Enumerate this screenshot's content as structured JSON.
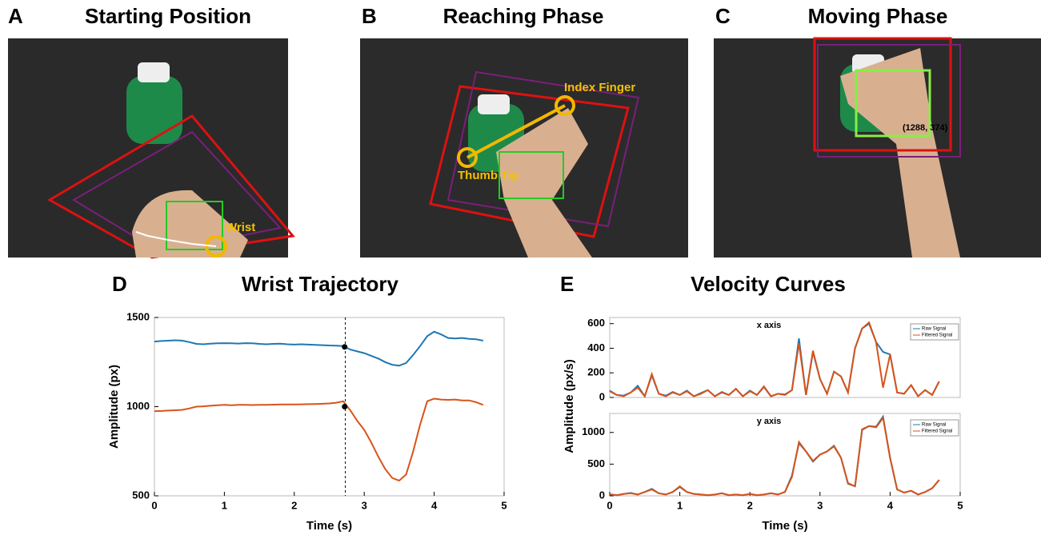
{
  "panels": [
    {
      "label": "A",
      "title": "Starting Position",
      "annotations": [
        "Wrist"
      ]
    },
    {
      "label": "B",
      "title": "Reaching Phase",
      "annotations": [
        "Index Finger",
        "Thumb Tip"
      ]
    },
    {
      "label": "C",
      "title": "Moving Phase",
      "annotations": [
        "(1288, 374)"
      ]
    }
  ],
  "chart_data": [
    {
      "type": "line",
      "label": "D",
      "title": "Wrist Trajectory",
      "xlabel": "Time (s)",
      "ylabel": "Amplitude (px)",
      "x": [
        0,
        0.1,
        0.2,
        0.3,
        0.4,
        0.5,
        0.6,
        0.7,
        0.8,
        0.9,
        1.0,
        1.1,
        1.2,
        1.3,
        1.4,
        1.5,
        1.6,
        1.7,
        1.8,
        1.9,
        2.0,
        2.1,
        2.2,
        2.3,
        2.4,
        2.5,
        2.6,
        2.7,
        2.8,
        2.9,
        3.0,
        3.1,
        3.2,
        3.3,
        3.4,
        3.5,
        3.6,
        3.7,
        3.8,
        3.9,
        4.0,
        4.1,
        4.2,
        4.3,
        4.4,
        4.5,
        4.6,
        4.7
      ],
      "series": [
        {
          "color": "#1f77b4",
          "values": [
            1365,
            1368,
            1370,
            1372,
            1370,
            1362,
            1352,
            1350,
            1353,
            1355,
            1356,
            1355,
            1354,
            1356,
            1355,
            1352,
            1350,
            1352,
            1353,
            1350,
            1348,
            1350,
            1348,
            1346,
            1345,
            1343,
            1342,
            1340,
            1320,
            1310,
            1300,
            1285,
            1270,
            1250,
            1235,
            1230,
            1245,
            1290,
            1340,
            1395,
            1420,
            1405,
            1385,
            1382,
            1385,
            1380,
            1378,
            1370
          ]
        },
        {
          "color": "#d95319",
          "values": [
            975,
            976,
            978,
            980,
            982,
            990,
            1000,
            1002,
            1005,
            1008,
            1010,
            1008,
            1010,
            1010,
            1009,
            1010,
            1010,
            1011,
            1012,
            1012,
            1012,
            1013,
            1014,
            1015,
            1016,
            1018,
            1022,
            1030,
            980,
            920,
            870,
            800,
            720,
            650,
            600,
            585,
            620,
            750,
            900,
            1030,
            1045,
            1040,
            1038,
            1040,
            1035,
            1035,
            1025,
            1010
          ]
        }
      ],
      "markers": {
        "x": [
          2.72,
          2.72
        ],
        "y": [
          1335,
          1000
        ]
      },
      "vline": 2.73,
      "xlim": [
        0,
        5
      ],
      "xticks": [
        0,
        1,
        2,
        3,
        4,
        5
      ],
      "ylim": [
        500,
        1500
      ],
      "yticks": [
        500,
        1000,
        1500
      ]
    },
    {
      "type": "line",
      "label": "E",
      "title": "Velocity Curves",
      "ylabel": "Amplitude (px/s)",
      "annotation": "x axis",
      "x": [
        0,
        0.1,
        0.2,
        0.3,
        0.4,
        0.5,
        0.6,
        0.7,
        0.8,
        0.9,
        1.0,
        1.1,
        1.2,
        1.3,
        1.4,
        1.5,
        1.6,
        1.7,
        1.8,
        1.9,
        2.0,
        2.1,
        2.2,
        2.3,
        2.4,
        2.5,
        2.6,
        2.7,
        2.8,
        2.9,
        3.0,
        3.1,
        3.2,
        3.3,
        3.4,
        3.5,
        3.6,
        3.7,
        3.8,
        3.9,
        4.0,
        4.1,
        4.2,
        4.3,
        4.4,
        4.5,
        4.6,
        4.7
      ],
      "series": [
        {
          "name": "Raw Signal",
          "color": "#1f77b4",
          "values": [
            55,
            20,
            15,
            40,
            95,
            10,
            180,
            30,
            15,
            45,
            20,
            55,
            10,
            35,
            60,
            10,
            45,
            20,
            70,
            10,
            55,
            20,
            85,
            10,
            30,
            25,
            60,
            480,
            20,
            370,
            150,
            30,
            210,
            170,
            40,
            400,
            560,
            600,
            450,
            370,
            350,
            40,
            30,
            100,
            10,
            60,
            20,
            130
          ]
        },
        {
          "name": "Filtered Signal",
          "color": "#d95319",
          "values": [
            50,
            20,
            10,
            40,
            80,
            10,
            190,
            30,
            10,
            40,
            20,
            50,
            10,
            30,
            60,
            10,
            40,
            20,
            70,
            10,
            50,
            20,
            90,
            10,
            30,
            20,
            60,
            440,
            20,
            380,
            150,
            30,
            210,
            170,
            40,
            400,
            560,
            610,
            450,
            80,
            350,
            40,
            30,
            100,
            10,
            60,
            20,
            130
          ]
        }
      ],
      "xlim": [
        0,
        5
      ],
      "ylim": [
        0,
        650
      ],
      "yticks": [
        0,
        200,
        400,
        600
      ]
    },
    {
      "type": "line",
      "xlabel": "Time (s)",
      "annotation": "y axis",
      "x": [
        0,
        0.1,
        0.2,
        0.3,
        0.4,
        0.5,
        0.6,
        0.7,
        0.8,
        0.9,
        1.0,
        1.1,
        1.2,
        1.3,
        1.4,
        1.5,
        1.6,
        1.7,
        1.8,
        1.9,
        2.0,
        2.1,
        2.2,
        2.3,
        2.4,
        2.5,
        2.6,
        2.7,
        2.8,
        2.9,
        3.0,
        3.1,
        3.2,
        3.3,
        3.4,
        3.5,
        3.6,
        3.7,
        3.8,
        3.9,
        4.0,
        4.1,
        4.2,
        4.3,
        4.4,
        4.5,
        4.6,
        4.7
      ],
      "series": [
        {
          "name": "Raw Signal",
          "color": "#1f77b4",
          "values": [
            25,
            10,
            30,
            45,
            20,
            60,
            110,
            40,
            20,
            60,
            140,
            60,
            30,
            20,
            10,
            20,
            40,
            10,
            20,
            10,
            30,
            10,
            20,
            40,
            20,
            60,
            320,
            830,
            700,
            540,
            650,
            700,
            790,
            600,
            190,
            150,
            1040,
            1100,
            1090,
            1250,
            600,
            100,
            50,
            80,
            20,
            60,
            120,
            250
          ]
        },
        {
          "name": "Filtered Signal",
          "color": "#d95319",
          "values": [
            20,
            10,
            30,
            40,
            20,
            60,
            100,
            40,
            20,
            60,
            150,
            60,
            30,
            20,
            10,
            20,
            40,
            10,
            20,
            10,
            30,
            10,
            20,
            40,
            20,
            60,
            300,
            850,
            700,
            550,
            650,
            700,
            780,
            600,
            200,
            150,
            1050,
            1100,
            1080,
            1230,
            600,
            100,
            50,
            80,
            20,
            60,
            120,
            250
          ]
        }
      ],
      "xlim": [
        0,
        5
      ],
      "xticks": [
        0,
        1,
        2,
        3,
        4,
        5
      ],
      "ylim": [
        0,
        1300
      ],
      "yticks": [
        0,
        500,
        1000
      ]
    }
  ]
}
